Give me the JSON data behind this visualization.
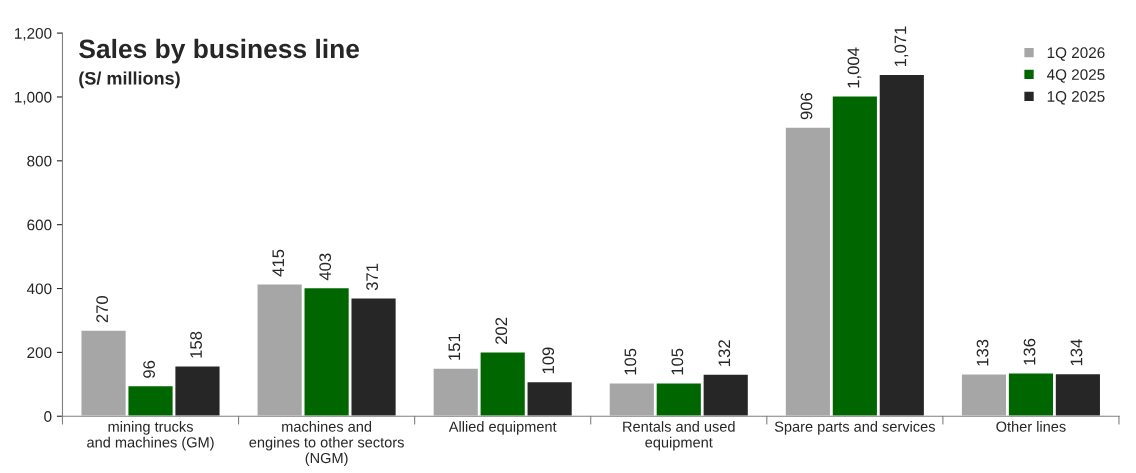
{
  "chart_data": {
    "type": "bar",
    "title": "Sales by business line",
    "subtitle": "(S/ millions)",
    "categories": [
      "mining trucks\nand machines (GM)",
      "machines and\nengines to other sectors\n(NGM)",
      "Allied equipment",
      "Rentals and used\nequipment",
      "Spare parts and services",
      "Other lines"
    ],
    "series": [
      {
        "name": "1Q 2026",
        "color": "#a6a6a6",
        "values": [
          270,
          415,
          151,
          105,
          906,
          133
        ],
        "value_labels": [
          "270",
          "415",
          "151",
          "105",
          "906",
          "133"
        ]
      },
      {
        "name": "4Q 2025",
        "color": "#006600",
        "values": [
          96,
          403,
          202,
          105,
          1004,
          136
        ],
        "value_labels": [
          "96",
          "403",
          "202",
          "105",
          "1,004",
          "136"
        ]
      },
      {
        "name": "1Q 2025",
        "color": "#262626",
        "values": [
          158,
          371,
          109,
          132,
          1071,
          134
        ],
        "value_labels": [
          "158",
          "371",
          "109",
          "132",
          "1,071",
          "134"
        ]
      }
    ],
    "ylim": [
      0,
      1200
    ],
    "yticks": [
      0,
      {
        "value": 200,
        "label": "200"
      },
      {
        "value": 400,
        "label": "400"
      },
      {
        "value": 600,
        "label": "600"
      },
      {
        "value": 800,
        "label": "800"
      },
      {
        "value": 1000,
        "label": "1,000"
      },
      {
        "value": 1200,
        "label": "1,200"
      }
    ],
    "legend": "top right",
    "grid": false
  }
}
